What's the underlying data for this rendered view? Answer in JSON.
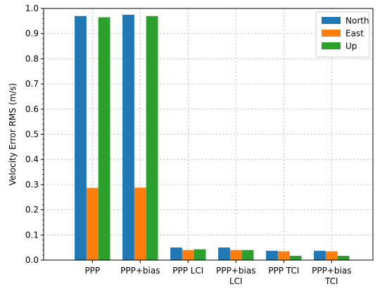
{
  "chart_data": {
    "type": "bar",
    "categories": [
      "PPP",
      "PPP+bias",
      "PPP LCI",
      "PPP+bias\nLCI",
      "PPP TCI",
      "PPP+bias\nTCI"
    ],
    "series": [
      {
        "name": "North",
        "color": "#1f77b4",
        "values": [
          0.97,
          0.975,
          0.05,
          0.05,
          0.037,
          0.037
        ]
      },
      {
        "name": "East",
        "color": "#ff7f0e",
        "values": [
          0.287,
          0.288,
          0.04,
          0.04,
          0.035,
          0.035
        ]
      },
      {
        "name": "Up",
        "color": "#2ca02c",
        "values": [
          0.965,
          0.97,
          0.043,
          0.04,
          0.017,
          0.017
        ]
      }
    ],
    "xlabel": "",
    "ylabel": "Velocity Error RMS (m/s)",
    "ylim": [
      0,
      1.0
    ],
    "yticks": [
      "0.0",
      "0.1",
      "0.2",
      "0.3",
      "0.4",
      "0.5",
      "0.6",
      "0.7",
      "0.8",
      "0.9",
      "1.0"
    ],
    "grid": true,
    "legend_placement": "top-right"
  }
}
